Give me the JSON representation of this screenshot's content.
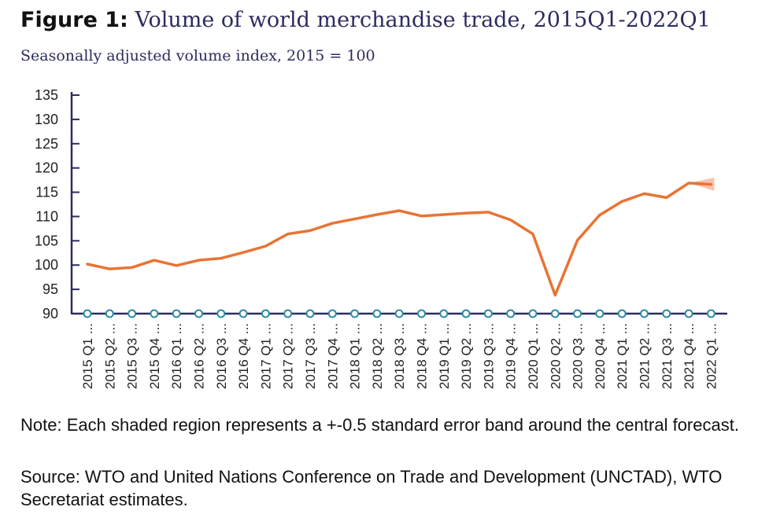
{
  "title": {
    "prefix": "Figure 1:",
    "text": "Volume of world merchandise trade, 2015Q1-2022Q1"
  },
  "subtitle": "Seasonally adjusted volume index, 2015 = 100",
  "note": "Note: Each shaded region represents a +-0.5 standard error band around the central forecast.",
  "source": "Source: WTO and United Nations Conference on Trade and Development (UNCTAD), WTO Secretariat estimates.",
  "colors": {
    "line": "#e87434",
    "band": "#f5a88a",
    "axis": "#2b2c5e",
    "marker": "#2a8aa0"
  },
  "chart_data": {
    "type": "line",
    "categories": [
      "2015 Q1 ...",
      "2015 Q2 ...",
      "2015 Q3 ...",
      "2015 Q4 ...",
      "2016 Q1 ...",
      "2016 Q2 ...",
      "2016 Q3 ...",
      "2016 Q4 ...",
      "2017 Q1 ...",
      "2017 Q2 ...",
      "2017 Q3 ...",
      "2017 Q4 ...",
      "2018 Q1 ...",
      "2018 Q2 ...",
      "2018 Q3 ...",
      "2018 Q4 ...",
      "2019 Q1 ...",
      "2019 Q2 ...",
      "2019 Q3 ...",
      "2019 Q4 ...",
      "2020 Q1 ...",
      "2020 Q2 ...",
      "2020 Q3 ...",
      "2020 Q4 ...",
      "2021 Q1 ...",
      "2021 Q2 ...",
      "2021 Q3 ...",
      "2021 Q4 ...",
      "2022 Q1 ..."
    ],
    "values": [
      100.2,
      99.2,
      99.5,
      101.0,
      99.9,
      101.0,
      101.4,
      102.6,
      103.9,
      106.4,
      107.1,
      108.6,
      109.5,
      110.4,
      111.2,
      110.1,
      110.4,
      110.7,
      110.9,
      109.3,
      106.4,
      93.8,
      105.1,
      110.3,
      113.1,
      114.7,
      113.9,
      116.9,
      116.6
    ],
    "band": {
      "category": "2022 Q1 ...",
      "upper": 118.0,
      "lower": 115.3
    },
    "yticks": [
      90,
      95,
      100,
      105,
      110,
      115,
      120,
      125,
      130,
      135
    ],
    "ylim": [
      90,
      135
    ],
    "xlabel": "",
    "ylabel": "",
    "grid": false
  }
}
